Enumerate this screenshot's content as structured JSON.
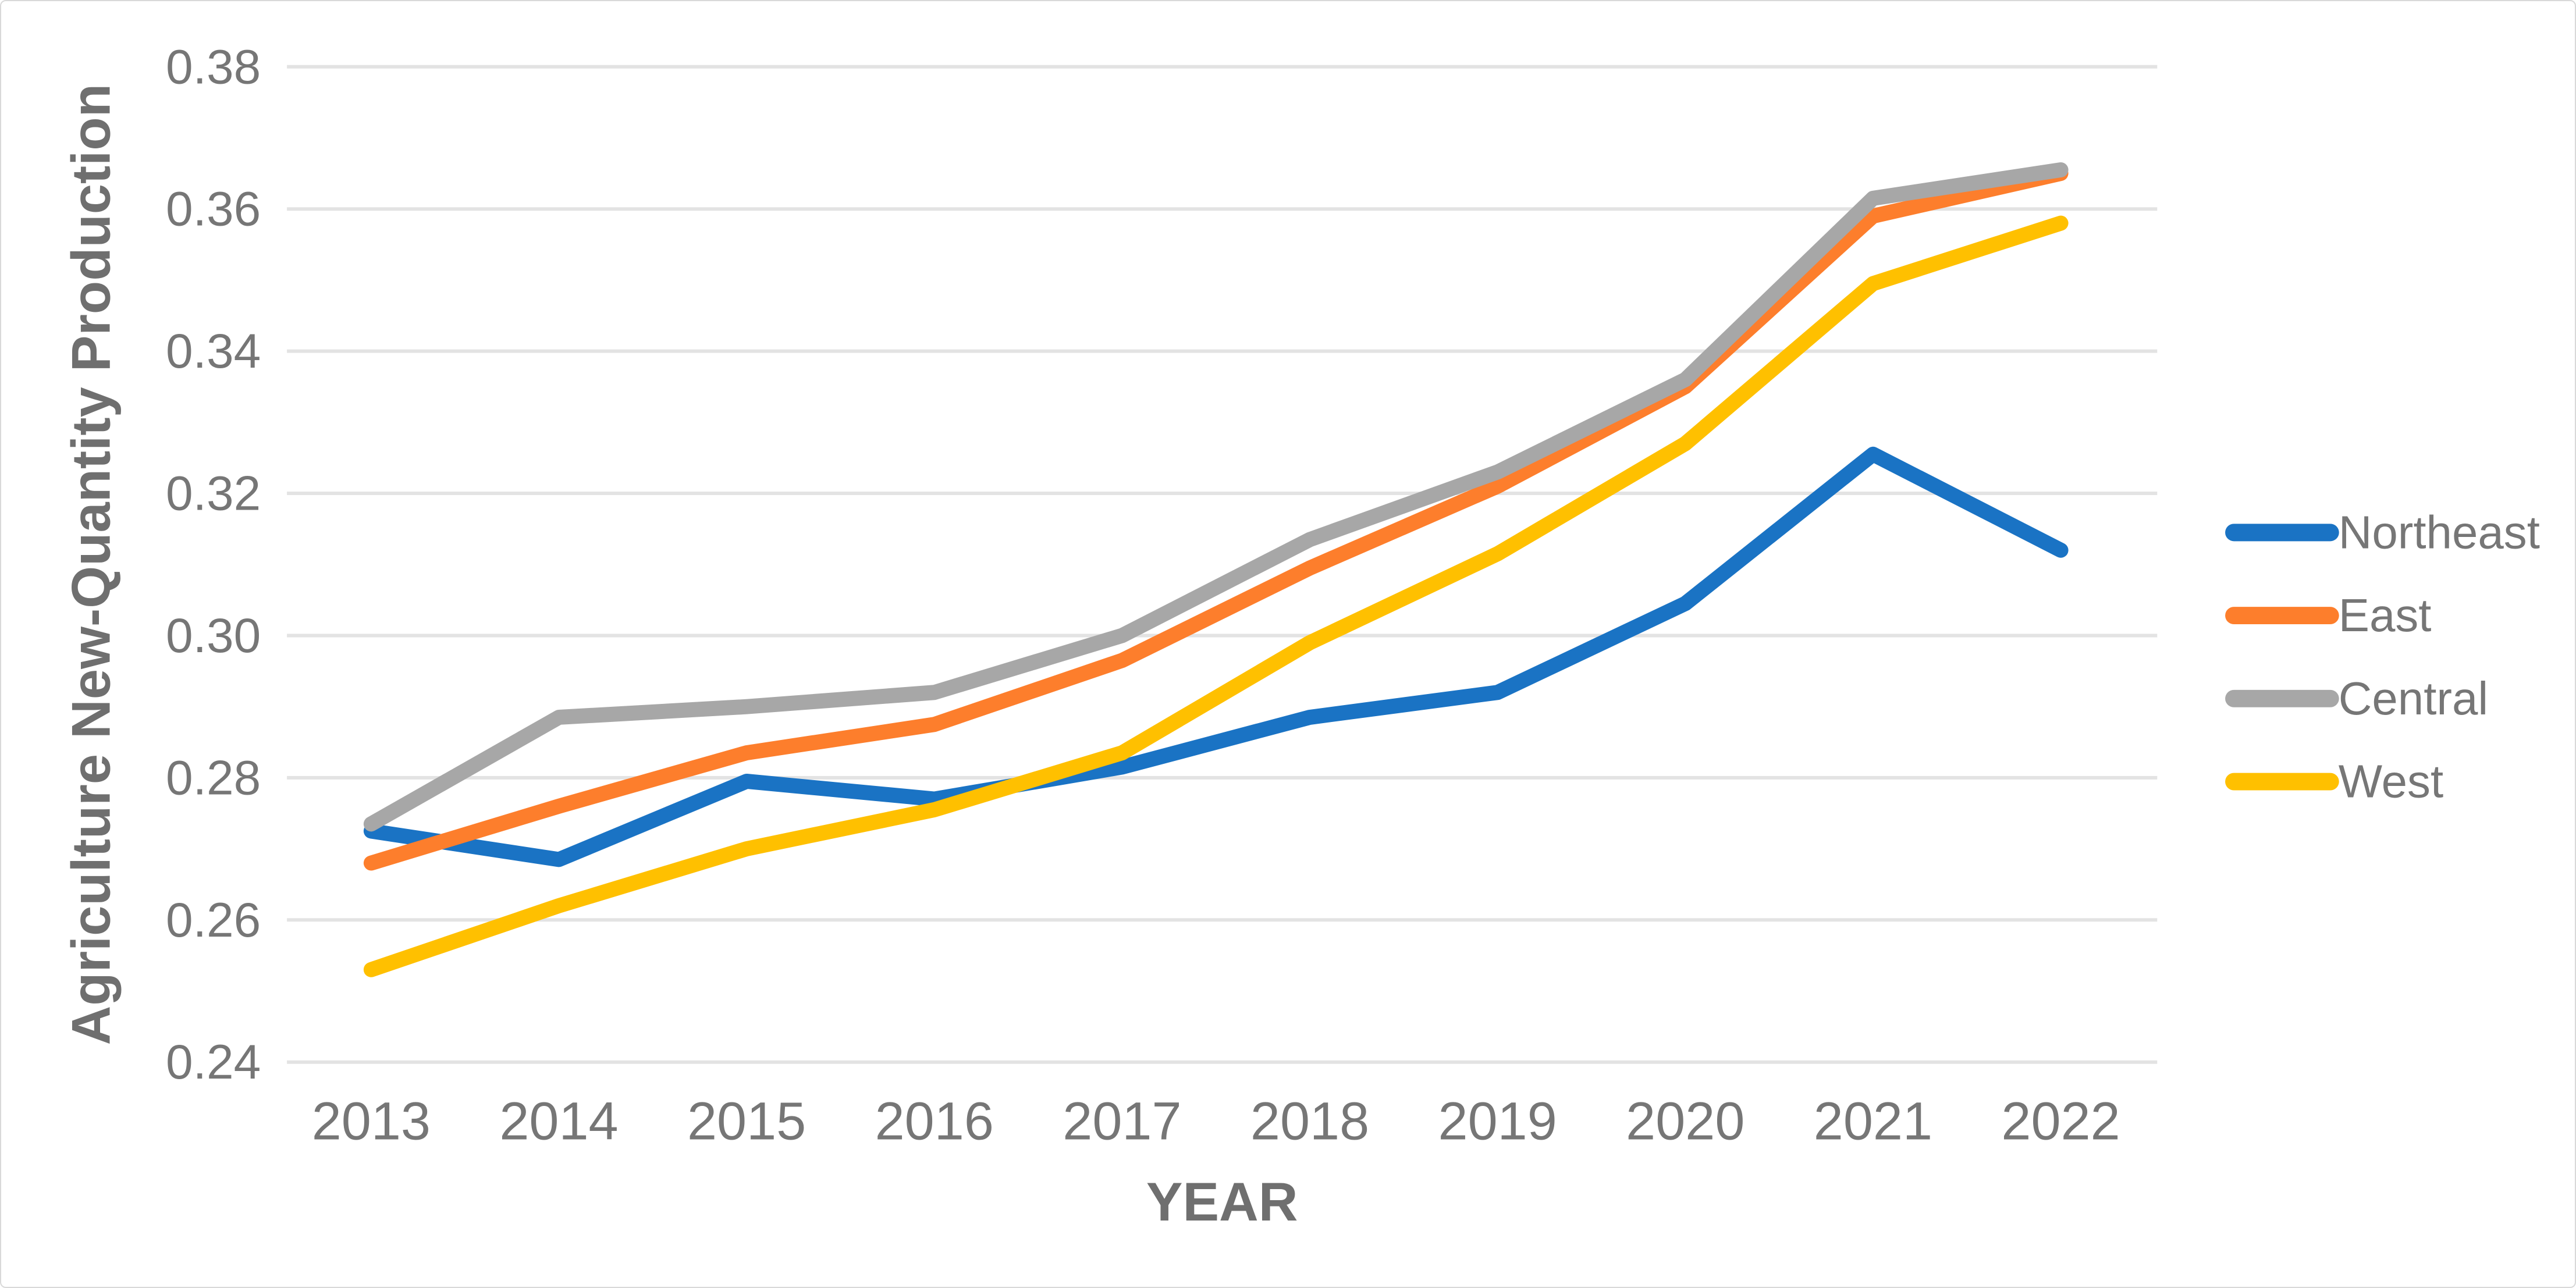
{
  "page": {
    "background_color": "#FFFFFF",
    "frame_border_color": "#D9D9D9"
  },
  "chart": {
    "text_color": "#767676",
    "axis_title_color": "#6F6F6F",
    "gridline_color": "#E3E3E3",
    "line_width": 26,
    "y_tick_labels": [
      "0.38",
      "0.36",
      "0.34",
      "0.32",
      "0.30",
      "0.28",
      "0.26",
      "0.24"
    ],
    "x_tick_labels": [
      "2013",
      "2014",
      "2015",
      "2016",
      "2017",
      "2018",
      "2019",
      "2020",
      "2021",
      "2022"
    ]
  },
  "chart_data": {
    "type": "line",
    "title": "",
    "xlabel": "YEAR",
    "ylabel": "Agriculture New-Quantity Production",
    "categories": [
      2013,
      2014,
      2015,
      2016,
      2017,
      2018,
      2019,
      2020,
      2021,
      2022
    ],
    "series": [
      {
        "name": "Northeast",
        "color": "#1A73C4",
        "values": [
          0.2725,
          0.2685,
          0.2795,
          0.277,
          0.2815,
          0.2885,
          0.292,
          0.3045,
          0.3255,
          0.312
        ]
      },
      {
        "name": "East",
        "color": "#FD7E2C",
        "values": [
          0.268,
          0.276,
          0.2835,
          0.2875,
          0.2965,
          0.3095,
          0.321,
          0.335,
          0.359,
          0.365
        ]
      },
      {
        "name": "Central",
        "color": "#A7A7A7",
        "values": [
          0.2735,
          0.2885,
          0.29,
          0.292,
          0.3,
          0.3135,
          0.323,
          0.336,
          0.3615,
          0.3655
        ]
      },
      {
        "name": "West",
        "color": "#FFC000",
        "values": [
          0.253,
          0.262,
          0.27,
          0.2755,
          0.2835,
          0.299,
          0.3115,
          0.327,
          0.3495,
          0.358
        ]
      }
    ],
    "ylim": [
      0.24,
      0.38
    ],
    "y_tick_step": 0.02,
    "grid": "horizontal",
    "legend_position": "right"
  }
}
